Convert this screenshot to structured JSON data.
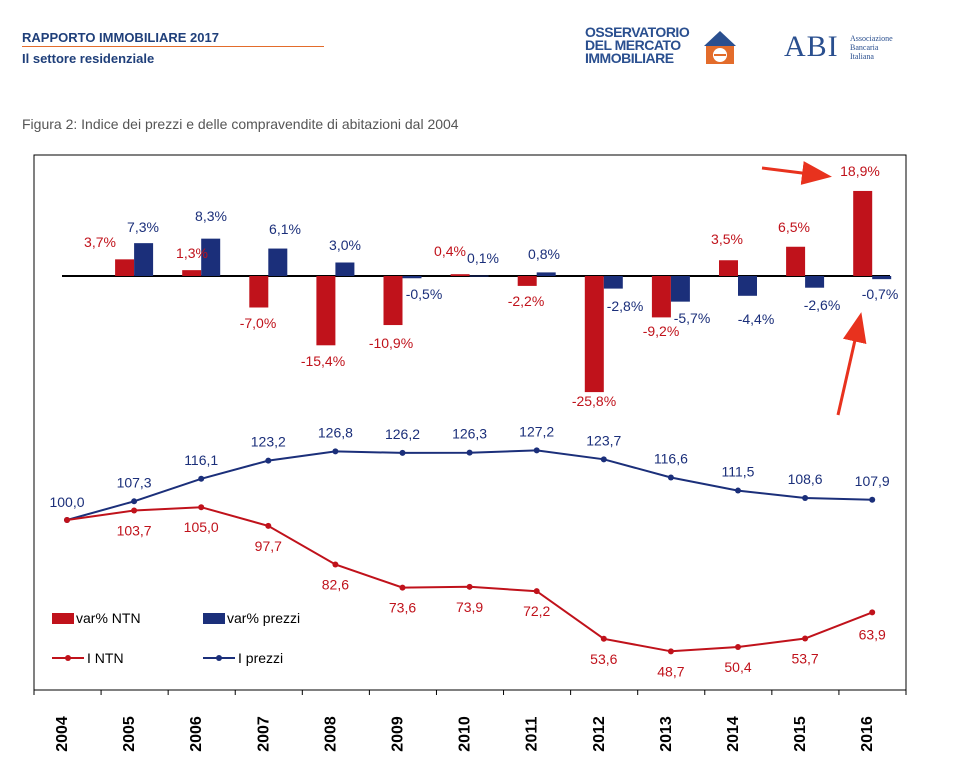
{
  "header": {
    "title": "RAPPORTO IMMOBILIARE 2017",
    "subtitle": "Il settore residenziale",
    "omi_logo_lines": [
      "OSSERVATORIO",
      "DEL MERCATO",
      "IMMOBILIARE"
    ],
    "abi_logo": "ABI",
    "abi_lines": [
      "Associazione",
      "Bancaria",
      "Italiana"
    ]
  },
  "caption": "Figura 2: Indice dei prezzi e delle compravendite di abitazioni dal 2004",
  "colors": {
    "ntn": "#c0121b",
    "prezzi": "#1b2f7a",
    "arrow": "#e8321e",
    "axis": "#000000"
  },
  "chart_data": {
    "type": "bar+line",
    "categories": [
      "2004",
      "2005",
      "2006",
      "2007",
      "2008",
      "2009",
      "2010",
      "2011",
      "2012",
      "2013",
      "2014",
      "2015",
      "2016"
    ],
    "bar_series": [
      {
        "name": "var% NTN",
        "values": [
          null,
          3.7,
          1.3,
          -7.0,
          -15.4,
          -10.9,
          0.4,
          -2.2,
          -25.8,
          -9.2,
          3.5,
          6.5,
          18.9
        ],
        "labels": [
          null,
          "3,7%",
          "1,3%",
          "-7,0%",
          "-15,4%",
          "-10,9%",
          "0,4%",
          "-2,2%",
          "-25,8%",
          "-9,2%",
          "3,5%",
          "6,5%",
          "18,9%"
        ]
      },
      {
        "name": "var% prezzi",
        "values": [
          null,
          7.3,
          8.3,
          6.1,
          3.0,
          -0.5,
          0.1,
          0.8,
          -2.8,
          -5.7,
          -4.4,
          -2.6,
          -0.7
        ],
        "labels": [
          null,
          "7,3%",
          "8,3%",
          "6,1%",
          "3,0%",
          "-0,5%",
          "0,1%",
          "0,8%",
          "-2,8%",
          "-5,7%",
          "-4,4%",
          "-2,6%",
          "-0,7%"
        ]
      }
    ],
    "line_series": [
      {
        "name": "I NTN",
        "values": [
          100.0,
          103.7,
          105.0,
          97.7,
          82.6,
          73.6,
          73.9,
          72.2,
          53.6,
          48.7,
          50.4,
          53.7,
          63.9
        ],
        "labels": [
          "100,0",
          "103,7",
          "105,0",
          "97,7",
          "82,6",
          "73,6",
          "73,9",
          "72,2",
          "53,6",
          "48,7",
          "50,4",
          "53,7",
          "63,9"
        ]
      },
      {
        "name": "I prezzi",
        "values": [
          100.0,
          107.3,
          116.1,
          123.2,
          126.8,
          126.2,
          126.3,
          127.2,
          123.7,
          116.6,
          111.5,
          108.6,
          107.9
        ],
        "labels": [
          "100,0",
          "107,3",
          "116,1",
          "123,2",
          "126,8",
          "126,2",
          "126,3",
          "127,2",
          "123,7",
          "116,6",
          "111,5",
          "108,6",
          "107,9"
        ]
      }
    ],
    "legend": [
      "var% NTN",
      "var% prezzi",
      "I NTN",
      "I prezzi"
    ],
    "legend_position": "bottom-left",
    "annotations": [
      "arrow pointing to 2016 var% NTN",
      "arrow pointing to 2016 var% prezzi"
    ],
    "grid": false
  }
}
